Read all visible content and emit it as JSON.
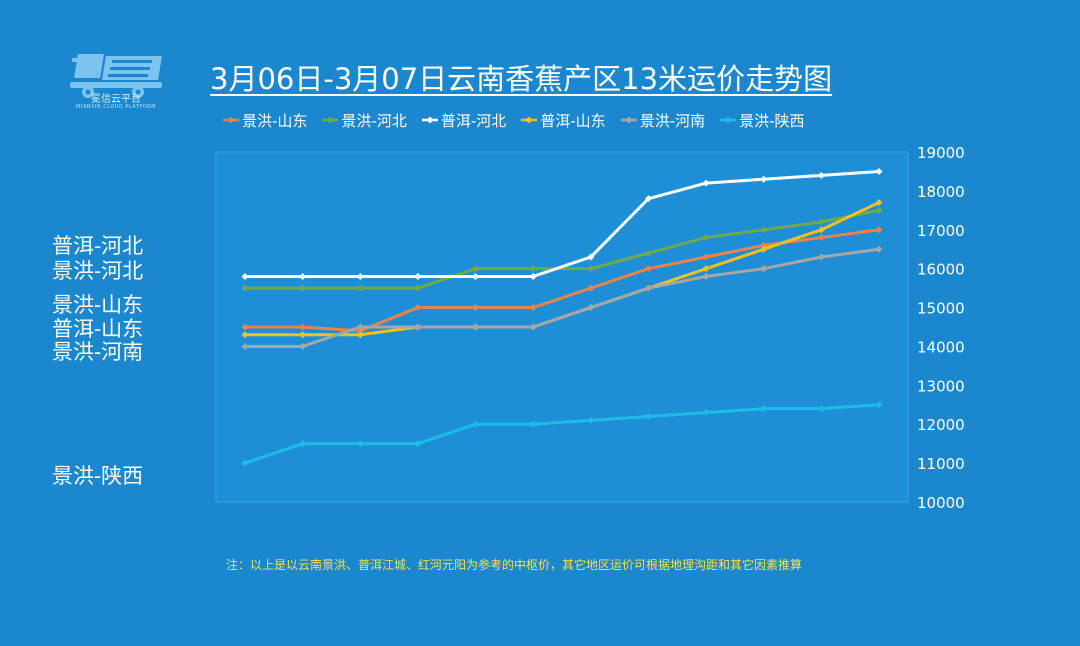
{
  "logo": {
    "caption": "冕信云平台",
    "subcaption": "MIANXIN CLOUD PLATFORM"
  },
  "title": "3月06日-3月07日云南香蕉产区13米运价走势图",
  "side_labels": [
    "普洱-河北",
    "景洪-河北",
    "景洪-山东",
    "普洱-山东",
    "景洪-河南",
    "景洪-陕西"
  ],
  "footnote": "注：以上是以云南景洪、普洱江城、红河元阳为参考的中枢价，其它地区运价可根据地理沟距和其它因素推算",
  "colors": {
    "background": "#1a87cf",
    "plot_area": "#1e8ed6",
    "plot_border": "#3aa4e8"
  },
  "chart_data": {
    "type": "line",
    "x": [
      1,
      2,
      3,
      4,
      5,
      6,
      7,
      8,
      9,
      10,
      11,
      12
    ],
    "ylim": [
      10000,
      19000
    ],
    "yticks": [
      "10000",
      "11000",
      "12000",
      "13000",
      "14000",
      "15000",
      "16000",
      "17000",
      "18000",
      "19000"
    ],
    "y_axis_side": "right",
    "grid": false,
    "legend_position": "top",
    "series": [
      {
        "name": "景洪-山东",
        "color": "#e8834a",
        "values": [
          14500,
          14500,
          14400,
          15000,
          15000,
          15000,
          15500,
          16000,
          16300,
          16600,
          16800,
          17000
        ]
      },
      {
        "name": "景洪-河北",
        "color": "#70a84a",
        "values": [
          15500,
          15500,
          15500,
          15500,
          16000,
          16000,
          16000,
          16400,
          16800,
          17000,
          17200,
          17500
        ]
      },
      {
        "name": "普洱-河北",
        "color": "#ffffff",
        "values": [
          15800,
          15800,
          15800,
          15800,
          15800,
          15800,
          16300,
          17800,
          18200,
          18300,
          18400,
          18500
        ]
      },
      {
        "name": "普洱-山东",
        "color": "#f2c121",
        "values": [
          14300,
          14300,
          14300,
          14500,
          14500,
          14500,
          15000,
          15500,
          16000,
          16500,
          17000,
          17700
        ]
      },
      {
        "name": "景洪-河南",
        "color": "#a6a6a6",
        "values": [
          14000,
          14000,
          14500,
          14500,
          14500,
          14500,
          15000,
          15500,
          15800,
          16000,
          16300,
          16500
        ]
      },
      {
        "name": "景洪-陕西",
        "color": "#1bbde8",
        "values": [
          11000,
          11500,
          11500,
          11500,
          12000,
          12000,
          12100,
          12200,
          12300,
          12400,
          12400,
          12500
        ]
      }
    ]
  }
}
